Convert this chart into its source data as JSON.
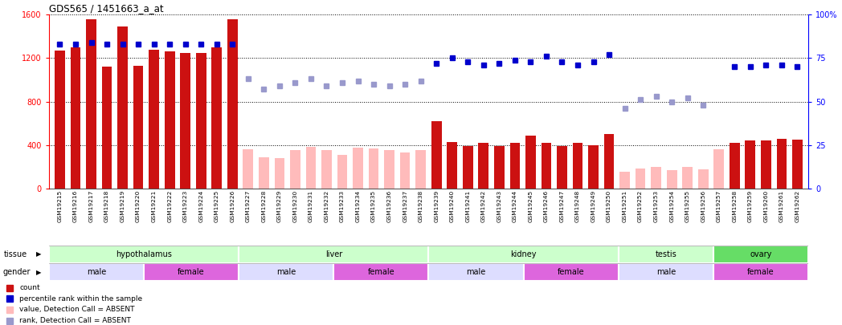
{
  "title": "GDS565 / 1451663_a_at",
  "samples": [
    "GSM19215",
    "GSM19216",
    "GSM19217",
    "GSM19218",
    "GSM19219",
    "GSM19220",
    "GSM19221",
    "GSM19222",
    "GSM19223",
    "GSM19224",
    "GSM19225",
    "GSM19226",
    "GSM19227",
    "GSM19228",
    "GSM19229",
    "GSM19230",
    "GSM19231",
    "GSM19232",
    "GSM19233",
    "GSM19234",
    "GSM19235",
    "GSM19236",
    "GSM19237",
    "GSM19238",
    "GSM19239",
    "GSM19240",
    "GSM19241",
    "GSM19242",
    "GSM19243",
    "GSM19244",
    "GSM19245",
    "GSM19246",
    "GSM19247",
    "GSM19248",
    "GSM19249",
    "GSM19250",
    "GSM19251",
    "GSM19252",
    "GSM19253",
    "GSM19254",
    "GSM19255",
    "GSM19256",
    "GSM19257",
    "GSM19258",
    "GSM19259",
    "GSM19260",
    "GSM19261",
    "GSM19262"
  ],
  "count_present": [
    1270,
    1300,
    1560,
    1120,
    1490,
    1130,
    1280,
    1260,
    1250,
    1250,
    1300,
    1560,
    null,
    null,
    null,
    null,
    null,
    null,
    null,
    null,
    null,
    null,
    null,
    null,
    620,
    430,
    390,
    420,
    390,
    420,
    490,
    420,
    390,
    420,
    400,
    500,
    null,
    null,
    null,
    null,
    null,
    null,
    null,
    420,
    440,
    440,
    460,
    450
  ],
  "count_absent": [
    null,
    null,
    null,
    null,
    null,
    null,
    null,
    null,
    null,
    null,
    null,
    null,
    360,
    290,
    280,
    355,
    380,
    355,
    310,
    375,
    370,
    355,
    330,
    355,
    null,
    null,
    null,
    null,
    null,
    null,
    null,
    null,
    null,
    null,
    null,
    null,
    155,
    185,
    200,
    170,
    195,
    175,
    360,
    null,
    null,
    null,
    null,
    null
  ],
  "rank_present": [
    83,
    83,
    84,
    83,
    83,
    83,
    83,
    83,
    83,
    83,
    83,
    83,
    null,
    null,
    null,
    null,
    null,
    null,
    null,
    null,
    null,
    null,
    null,
    null,
    72,
    75,
    73,
    71,
    72,
    74,
    73,
    76,
    73,
    71,
    73,
    77,
    null,
    null,
    null,
    null,
    null,
    null,
    null,
    70,
    70,
    71,
    71,
    70
  ],
  "rank_absent": [
    null,
    null,
    null,
    null,
    null,
    null,
    null,
    null,
    null,
    null,
    null,
    null,
    63,
    57,
    59,
    61,
    63,
    59,
    61,
    62,
    60,
    59,
    60,
    62,
    null,
    null,
    null,
    null,
    null,
    null,
    null,
    null,
    null,
    null,
    null,
    null,
    46,
    51,
    53,
    50,
    52,
    48,
    null,
    null,
    null,
    null,
    null,
    null
  ],
  "tissues": [
    {
      "label": "hypothalamus",
      "start": 0,
      "end": 12,
      "color": "#ccffcc"
    },
    {
      "label": "liver",
      "start": 12,
      "end": 24,
      "color": "#ccffcc"
    },
    {
      "label": "kidney",
      "start": 24,
      "end": 36,
      "color": "#ccffcc"
    },
    {
      "label": "testis",
      "start": 36,
      "end": 42,
      "color": "#ccffcc"
    },
    {
      "label": "ovary",
      "start": 42,
      "end": 48,
      "color": "#66dd66"
    }
  ],
  "genders": [
    {
      "label": "male",
      "start": 0,
      "end": 6,
      "color": "#ddddff"
    },
    {
      "label": "female",
      "start": 6,
      "end": 12,
      "color": "#dd66dd"
    },
    {
      "label": "male",
      "start": 12,
      "end": 18,
      "color": "#ddddff"
    },
    {
      "label": "female",
      "start": 18,
      "end": 24,
      "color": "#dd66dd"
    },
    {
      "label": "male",
      "start": 24,
      "end": 30,
      "color": "#ddddff"
    },
    {
      "label": "female",
      "start": 30,
      "end": 36,
      "color": "#dd66dd"
    },
    {
      "label": "male",
      "start": 36,
      "end": 42,
      "color": "#ddddff"
    },
    {
      "label": "female",
      "start": 42,
      "end": 48,
      "color": "#dd66dd"
    }
  ],
  "ylim_left": [
    0,
    1600
  ],
  "ylim_right": [
    0,
    100
  ],
  "yticks_left": [
    0,
    400,
    800,
    1200,
    1600
  ],
  "yticks_right": [
    0,
    25,
    50,
    75,
    100
  ],
  "bar_color_present": "#cc1111",
  "bar_color_absent": "#ffbbbb",
  "dot_color_present": "#0000cc",
  "dot_color_absent": "#9999cc",
  "bg_color": "#ffffff",
  "xtick_bg": "#d8d8d8"
}
